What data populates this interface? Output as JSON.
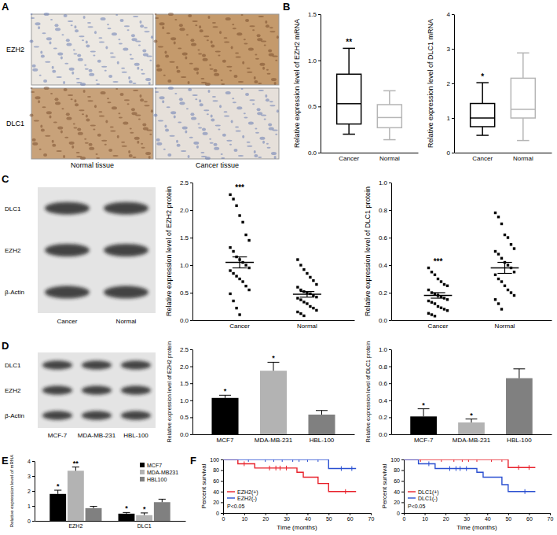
{
  "panel_labels": [
    "A",
    "B",
    "C",
    "D",
    "E",
    "F"
  ],
  "ihc": {
    "row_labels": [
      "EZH2",
      "DLC1"
    ],
    "column_labels": [
      "Normal tissue",
      "Cancer tissue"
    ]
  },
  "blot_c": {
    "band_labels": [
      "DLC1",
      "EZH2",
      "β-Actin"
    ],
    "lane_labels": [
      "Cancer",
      "Normal"
    ]
  },
  "blot_d": {
    "band_labels": [
      "DLC1",
      "EZH2",
      "β-Actin"
    ],
    "lane_labels": [
      "MCF-7",
      "MDA-MB-231",
      "HBL-100"
    ]
  },
  "chart_data": [
    {
      "type": "box",
      "y_label": "Relative expression level of EZH2 mRNA",
      "categories": [
        "Cancer",
        "Normal"
      ],
      "min": [
        0.2,
        0.14
      ],
      "q1": [
        0.31,
        0.27
      ],
      "median": [
        0.53,
        0.38
      ],
      "q3": [
        0.85,
        0.52
      ],
      "max": [
        1.13,
        0.67
      ],
      "colors": [
        "#000000",
        "#b5b5b5"
      ],
      "significance": [
        "**",
        null
      ],
      "ylim": [
        0,
        1.5
      ],
      "yticks": [
        {
          "value": 0,
          "label": "0.0"
        },
        {
          "value": 0.5,
          "label": "0.5"
        },
        {
          "value": 1,
          "label": "1.0"
        },
        {
          "value": 1.5,
          "label": "1.5"
        }
      ]
    },
    {
      "type": "box",
      "y_label": "Relative expression level of DLC1 mRNA",
      "categories": [
        "Cancer",
        "Normal"
      ],
      "min": [
        0.5,
        0.35
      ],
      "q1": [
        0.75,
        1.0
      ],
      "median": [
        1.0,
        1.25
      ],
      "q3": [
        1.42,
        2.15
      ],
      "max": [
        2.02,
        2.88
      ],
      "colors": [
        "#000000",
        "#b5b5b5"
      ],
      "significance": [
        "*",
        null
      ],
      "ylim": [
        0,
        4
      ],
      "yticks": [
        0,
        1,
        2,
        3,
        4
      ]
    },
    {
      "type": "scatter",
      "y_label": "Relative expression level of EZH2 protein",
      "categories": [
        "Cancer",
        "Normal"
      ],
      "values": [
        [
          2.28,
          2.2,
          2.08,
          1.9,
          1.78,
          1.55,
          1.45,
          1.32,
          1.25,
          1.15,
          1.1,
          1.05,
          1.0,
          0.95,
          0.9,
          0.85,
          0.8,
          0.75,
          0.7,
          0.62,
          0.55,
          0.48,
          0.35,
          0.22,
          0.1
        ],
        [
          1.1,
          1.0,
          0.92,
          0.85,
          0.78,
          0.72,
          0.65,
          0.6,
          0.55,
          0.52,
          0.5,
          0.48,
          0.45,
          0.42,
          0.4,
          0.37,
          0.33,
          0.3,
          0.25,
          0.22,
          0.18,
          0.15,
          0.12,
          0.08
        ]
      ],
      "mean": [
        1.05,
        0.47
      ],
      "error": [
        0.1,
        0.05
      ],
      "color": "#000000",
      "marker": "square",
      "significance": [
        "***",
        null
      ],
      "ylim": [
        0,
        2.5
      ],
      "yticks": [
        {
          "value": 0,
          "label": "0.0"
        },
        {
          "value": 0.5,
          "label": "0.5"
        },
        {
          "value": 1,
          "label": "1.0"
        },
        {
          "value": 1.5,
          "label": "1.5"
        },
        {
          "value": 2,
          "label": "2.0"
        },
        {
          "value": 2.5,
          "label": "2.5"
        }
      ]
    },
    {
      "type": "scatter",
      "y_label": "Relative expression level of DLC1 protein",
      "categories": [
        "Cancer",
        "Normal"
      ],
      "values": [
        [
          0.38,
          0.35,
          0.33,
          0.3,
          0.28,
          0.26,
          0.25,
          0.22,
          0.2,
          0.19,
          0.18,
          0.17,
          0.16,
          0.15,
          0.14,
          0.13,
          0.12,
          0.1,
          0.09,
          0.08,
          0.07,
          0.05,
          0.04,
          0.03
        ],
        [
          0.78,
          0.75,
          0.7,
          0.62,
          0.6,
          0.55,
          0.52,
          0.5,
          0.48,
          0.45,
          0.42,
          0.4,
          0.38,
          0.35,
          0.33,
          0.3,
          0.28,
          0.25,
          0.22,
          0.2,
          0.18,
          0.15,
          0.12,
          0.08
        ]
      ],
      "mean": [
        0.18,
        0.38
      ],
      "error": [
        0.02,
        0.04
      ],
      "color": "#000000",
      "marker": "square",
      "significance": [
        "***",
        null
      ],
      "ylim": [
        0,
        1
      ],
      "yticks": [
        {
          "value": 0,
          "label": "0.0"
        },
        {
          "value": 0.2,
          "label": "0.2"
        },
        {
          "value": 0.4,
          "label": "0.4"
        },
        {
          "value": 0.6,
          "label": "0.6"
        },
        {
          "value": 0.8,
          "label": "0.8"
        },
        {
          "value": 1,
          "label": "1.0"
        }
      ]
    },
    {
      "type": "bar",
      "y_label": "Relative expression level of EZH2 protein",
      "categories": [
        "MCF7",
        "MDA-MB-231",
        "HBL-100"
      ],
      "values": [
        1.07,
        1.87,
        0.58
      ],
      "errors": [
        0.08,
        0.25,
        0.12
      ],
      "colors": [
        "#000000",
        "#b3b3b3",
        "#808080"
      ],
      "significance": [
        "*",
        "*",
        null
      ],
      "ylim": [
        0,
        2.5
      ],
      "yticks": [
        {
          "value": 0,
          "label": "0.0"
        },
        {
          "value": 0.5,
          "label": "0.5"
        },
        {
          "value": 1,
          "label": "1.0"
        },
        {
          "value": 1.5,
          "label": "1.5"
        },
        {
          "value": 2,
          "label": "2.0"
        },
        {
          "value": 2.5,
          "label": "2.5"
        }
      ]
    },
    {
      "type": "bar",
      "y_label": "Relative expression level of DLC1 protein",
      "categories": [
        "MCF-7",
        "MDA-MB-231",
        "HBL-100"
      ],
      "values": [
        0.21,
        0.14,
        0.66
      ],
      "errors": [
        0.09,
        0.04,
        0.11
      ],
      "colors": [
        "#000000",
        "#b3b3b3",
        "#808080"
      ],
      "significance": [
        "*",
        "*",
        null
      ],
      "ylim": [
        0,
        1
      ],
      "yticks": [
        {
          "value": 0,
          "label": "0.0"
        },
        {
          "value": 0.2,
          "label": "0.2"
        },
        {
          "value": 0.4,
          "label": "0.4"
        },
        {
          "value": 0.6,
          "label": "0.6"
        },
        {
          "value": 0.8,
          "label": "0.8"
        },
        {
          "value": 1,
          "label": "1.0"
        }
      ]
    },
    {
      "type": "bar",
      "y_label": "Relative expression level of mRNA",
      "categories": [
        "EZH2",
        "DLC1"
      ],
      "series": [
        {
          "name": "MCF7",
          "color": "#000000",
          "values": [
            1.8,
            0.48
          ],
          "errors": [
            0.25,
            0.08
          ],
          "significance": [
            "*",
            "*"
          ]
        },
        {
          "name": "MDA-MB231",
          "color": "#b3b3b3",
          "values": [
            3.35,
            0.38
          ],
          "errors": [
            0.25,
            0.15
          ],
          "significance": [
            "**",
            "*"
          ]
        },
        {
          "name": "HBL100",
          "color": "#808080",
          "values": [
            0.85,
            1.25
          ],
          "errors": [
            0.12,
            0.2
          ],
          "significance": [
            null,
            null
          ]
        }
      ],
      "legend": "top-right",
      "ylim": [
        0,
        4
      ],
      "yticks": [
        0,
        1,
        2,
        3,
        4
      ]
    },
    {
      "type": "step",
      "x_label": "Time (months)",
      "y_label": "Percent survival",
      "series": [
        {
          "name": "EZH2(+)",
          "color": "#e8202a",
          "x": [
            0,
            7,
            15,
            35,
            38,
            45,
            50,
            63
          ],
          "values": [
            100,
            92,
            84,
            76,
            67,
            55,
            40,
            40
          ],
          "censored": [
            10,
            22,
            25,
            27,
            30,
            58
          ]
        },
        {
          "name": "EZH2(-)",
          "color": "#2a4fd1",
          "x": [
            0,
            50,
            63
          ],
          "values": [
            100,
            83,
            83
          ],
          "censored": [
            12,
            20,
            24,
            28,
            33,
            36,
            40,
            45,
            56,
            61
          ]
        }
      ],
      "annotation": "P<0.05",
      "legend": "bottom-left",
      "xlim": [
        0,
        70
      ],
      "xticks": [
        0,
        10,
        20,
        30,
        40,
        50,
        60,
        70
      ],
      "ylim": [
        0,
        100
      ],
      "yticks": [
        0,
        20,
        40,
        60,
        80,
        100
      ]
    },
    {
      "type": "step",
      "x_label": "Time (months)",
      "y_label": "Percent survival",
      "series": [
        {
          "name": "DLC1(+)",
          "color": "#e8202a",
          "x": [
            0,
            50,
            63
          ],
          "values": [
            100,
            85,
            85
          ],
          "censored": [
            8,
            18,
            24,
            28,
            31,
            35,
            42,
            47,
            55,
            60
          ]
        },
        {
          "name": "DLC1(-)",
          "color": "#2a4fd1",
          "x": [
            0,
            7,
            15,
            35,
            38,
            47,
            50,
            63
          ],
          "values": [
            100,
            92,
            83,
            76,
            67,
            53,
            40,
            40
          ],
          "censored": [
            12,
            22,
            25,
            27,
            30,
            58
          ]
        }
      ],
      "annotation": "P<0.05",
      "legend": "bottom-left",
      "xlim": [
        0,
        70
      ],
      "xticks": [
        0,
        10,
        20,
        30,
        40,
        50,
        60,
        70
      ],
      "ylim": [
        0,
        100
      ],
      "yticks": [
        0,
        20,
        40,
        60,
        80,
        100
      ]
    }
  ]
}
